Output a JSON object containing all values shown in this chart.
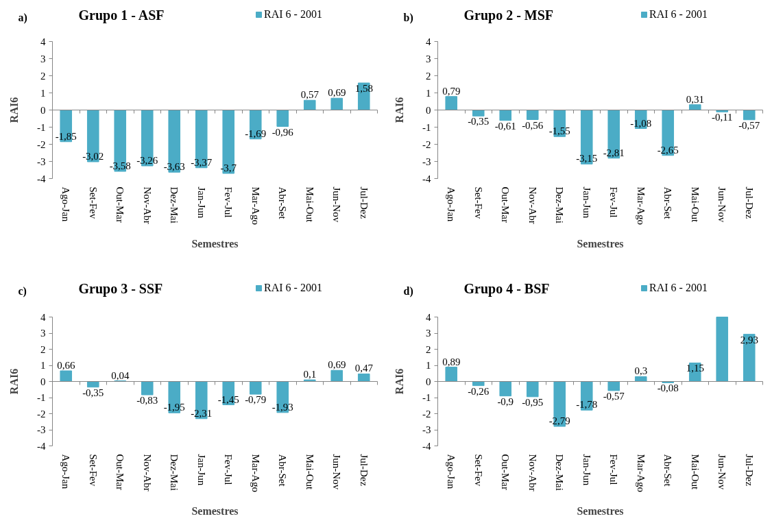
{
  "chart_data": [
    {
      "type": "bar",
      "title": "Grupo 1 - ASF",
      "xlabel": "Semestres",
      "ylabel": "RAI6",
      "annotations": [
        "a)"
      ],
      "legend": "top right",
      "ylim": [
        -4,
        4
      ],
      "yticks": [
        -4,
        -3,
        -2,
        -1,
        0,
        1,
        2,
        3,
        4
      ],
      "categories": [
        "Ago-Jan",
        "Set-Fev",
        "Out-Mar",
        "Nov-Abr",
        "Dez-Mai",
        "Jan-Jun",
        "Fev-Jul",
        "Mar-Ago",
        "Abr-Set",
        "Mai-Out",
        "Jun-Nov",
        "Jul-Dez"
      ],
      "series": [
        {
          "name": "RAI 6 - 2001",
          "color": "#4bacc6",
          "values": [
            -1.85,
            -3.02,
            -3.58,
            -3.26,
            -3.63,
            -3.37,
            -3.7,
            -1.69,
            -0.96,
            0.57,
            0.69,
            1.58
          ],
          "value_labels": [
            "-1,85",
            "-3,02",
            "-3,58",
            "-3,26",
            "-3,63",
            "-3,37",
            "-3,7",
            "-1,69",
            "-0,96",
            "0,57",
            "0,69",
            "1,58"
          ]
        }
      ]
    },
    {
      "type": "bar",
      "title": "Grupo 2 - MSF",
      "xlabel": "Semestres",
      "ylabel": "RAI6",
      "annotations": [
        "b)"
      ],
      "legend": "top right",
      "ylim": [
        -4,
        4
      ],
      "yticks": [
        -4,
        -3,
        -2,
        -1,
        0,
        1,
        2,
        3,
        4
      ],
      "categories": [
        "Ago-Jan",
        "Set-Fev",
        "Out-Mar",
        "Nov-Abr",
        "Dez-Mai",
        "Jan-Jun",
        "Fev-Jul",
        "Mar-Ago",
        "Abr-Set",
        "Mai-Out",
        "Jun-Nov",
        "Jul-Dez"
      ],
      "series": [
        {
          "name": "RAI 6 - 2001",
          "color": "#4bacc6",
          "values": [
            0.79,
            -0.35,
            -0.61,
            -0.56,
            -1.55,
            -3.15,
            -2.81,
            -1.08,
            -2.65,
            0.31,
            -0.11,
            -0.57
          ],
          "value_labels": [
            "0,79",
            "-0,35",
            "-0,61",
            "-0,56",
            "-1,55",
            "-3,15",
            "-2,81",
            "-1,08",
            "-2,65",
            "0,31",
            "-0,11",
            "-0,57"
          ]
        }
      ]
    },
    {
      "type": "bar",
      "title": "Grupo 3 - SSF",
      "xlabel": "Semestres",
      "ylabel": "RAI6",
      "annotations": [
        "c)"
      ],
      "legend": "top right",
      "ylim": [
        -4,
        4
      ],
      "yticks": [
        -4,
        -3,
        -2,
        -1,
        0,
        1,
        2,
        3,
        4
      ],
      "categories": [
        "Ago-Jan",
        "Set-Fev",
        "Out-Mar",
        "Nov-Abr",
        "Dez-Mai",
        "Jan-Jun",
        "Fev-Jul",
        "Mar-Ago",
        "Abr-Set",
        "Mai-Out",
        "Jun-Nov",
        "Jul-Dez"
      ],
      "series": [
        {
          "name": "RAI 6 - 2001",
          "color": "#4bacc6",
          "values": [
            0.66,
            -0.35,
            0.04,
            -0.83,
            -1.95,
            -2.31,
            -1.45,
            -0.79,
            -1.93,
            0.1,
            0.69,
            0.47
          ],
          "value_labels": [
            "0,66",
            "-0,35",
            "0,04",
            "-0,83",
            "-1,95",
            "-2,31",
            "-1,45",
            "-0,79",
            "-1,93",
            "0,1",
            "0,69",
            "0,47"
          ]
        }
      ]
    },
    {
      "type": "bar",
      "title": "Grupo 4 - BSF",
      "xlabel": "Semestres",
      "ylabel": "RAI6",
      "annotations": [
        "d)"
      ],
      "legend": "top right",
      "ylim": [
        -4,
        4
      ],
      "yticks": [
        -4,
        -3,
        -2,
        -1,
        0,
        1,
        2,
        3,
        4
      ],
      "categories": [
        "Ago-Jan",
        "Set-Fev",
        "Out-Mar",
        "Nov-Abr",
        "Dez-Mai",
        "Jan-Jun",
        "Fev-Jul",
        "Mar-Ago",
        "Abr-Set",
        "Mai-Out",
        "Jun-Nov",
        "Jul-Dez"
      ],
      "series": [
        {
          "name": "RAI 6 - 2001",
          "color": "#4bacc6",
          "values": [
            0.89,
            -0.26,
            -0.9,
            -0.95,
            -2.79,
            -1.78,
            -0.57,
            0.3,
            -0.08,
            1.15,
            4,
            2.93
          ],
          "value_labels": [
            "0,89",
            "-0,26",
            "-0,9",
            "-0,95",
            "-2,79",
            "-1,78",
            "-0,57",
            "0,3",
            "-0,08",
            "1,15",
            null,
            "2,93"
          ]
        }
      ]
    }
  ]
}
